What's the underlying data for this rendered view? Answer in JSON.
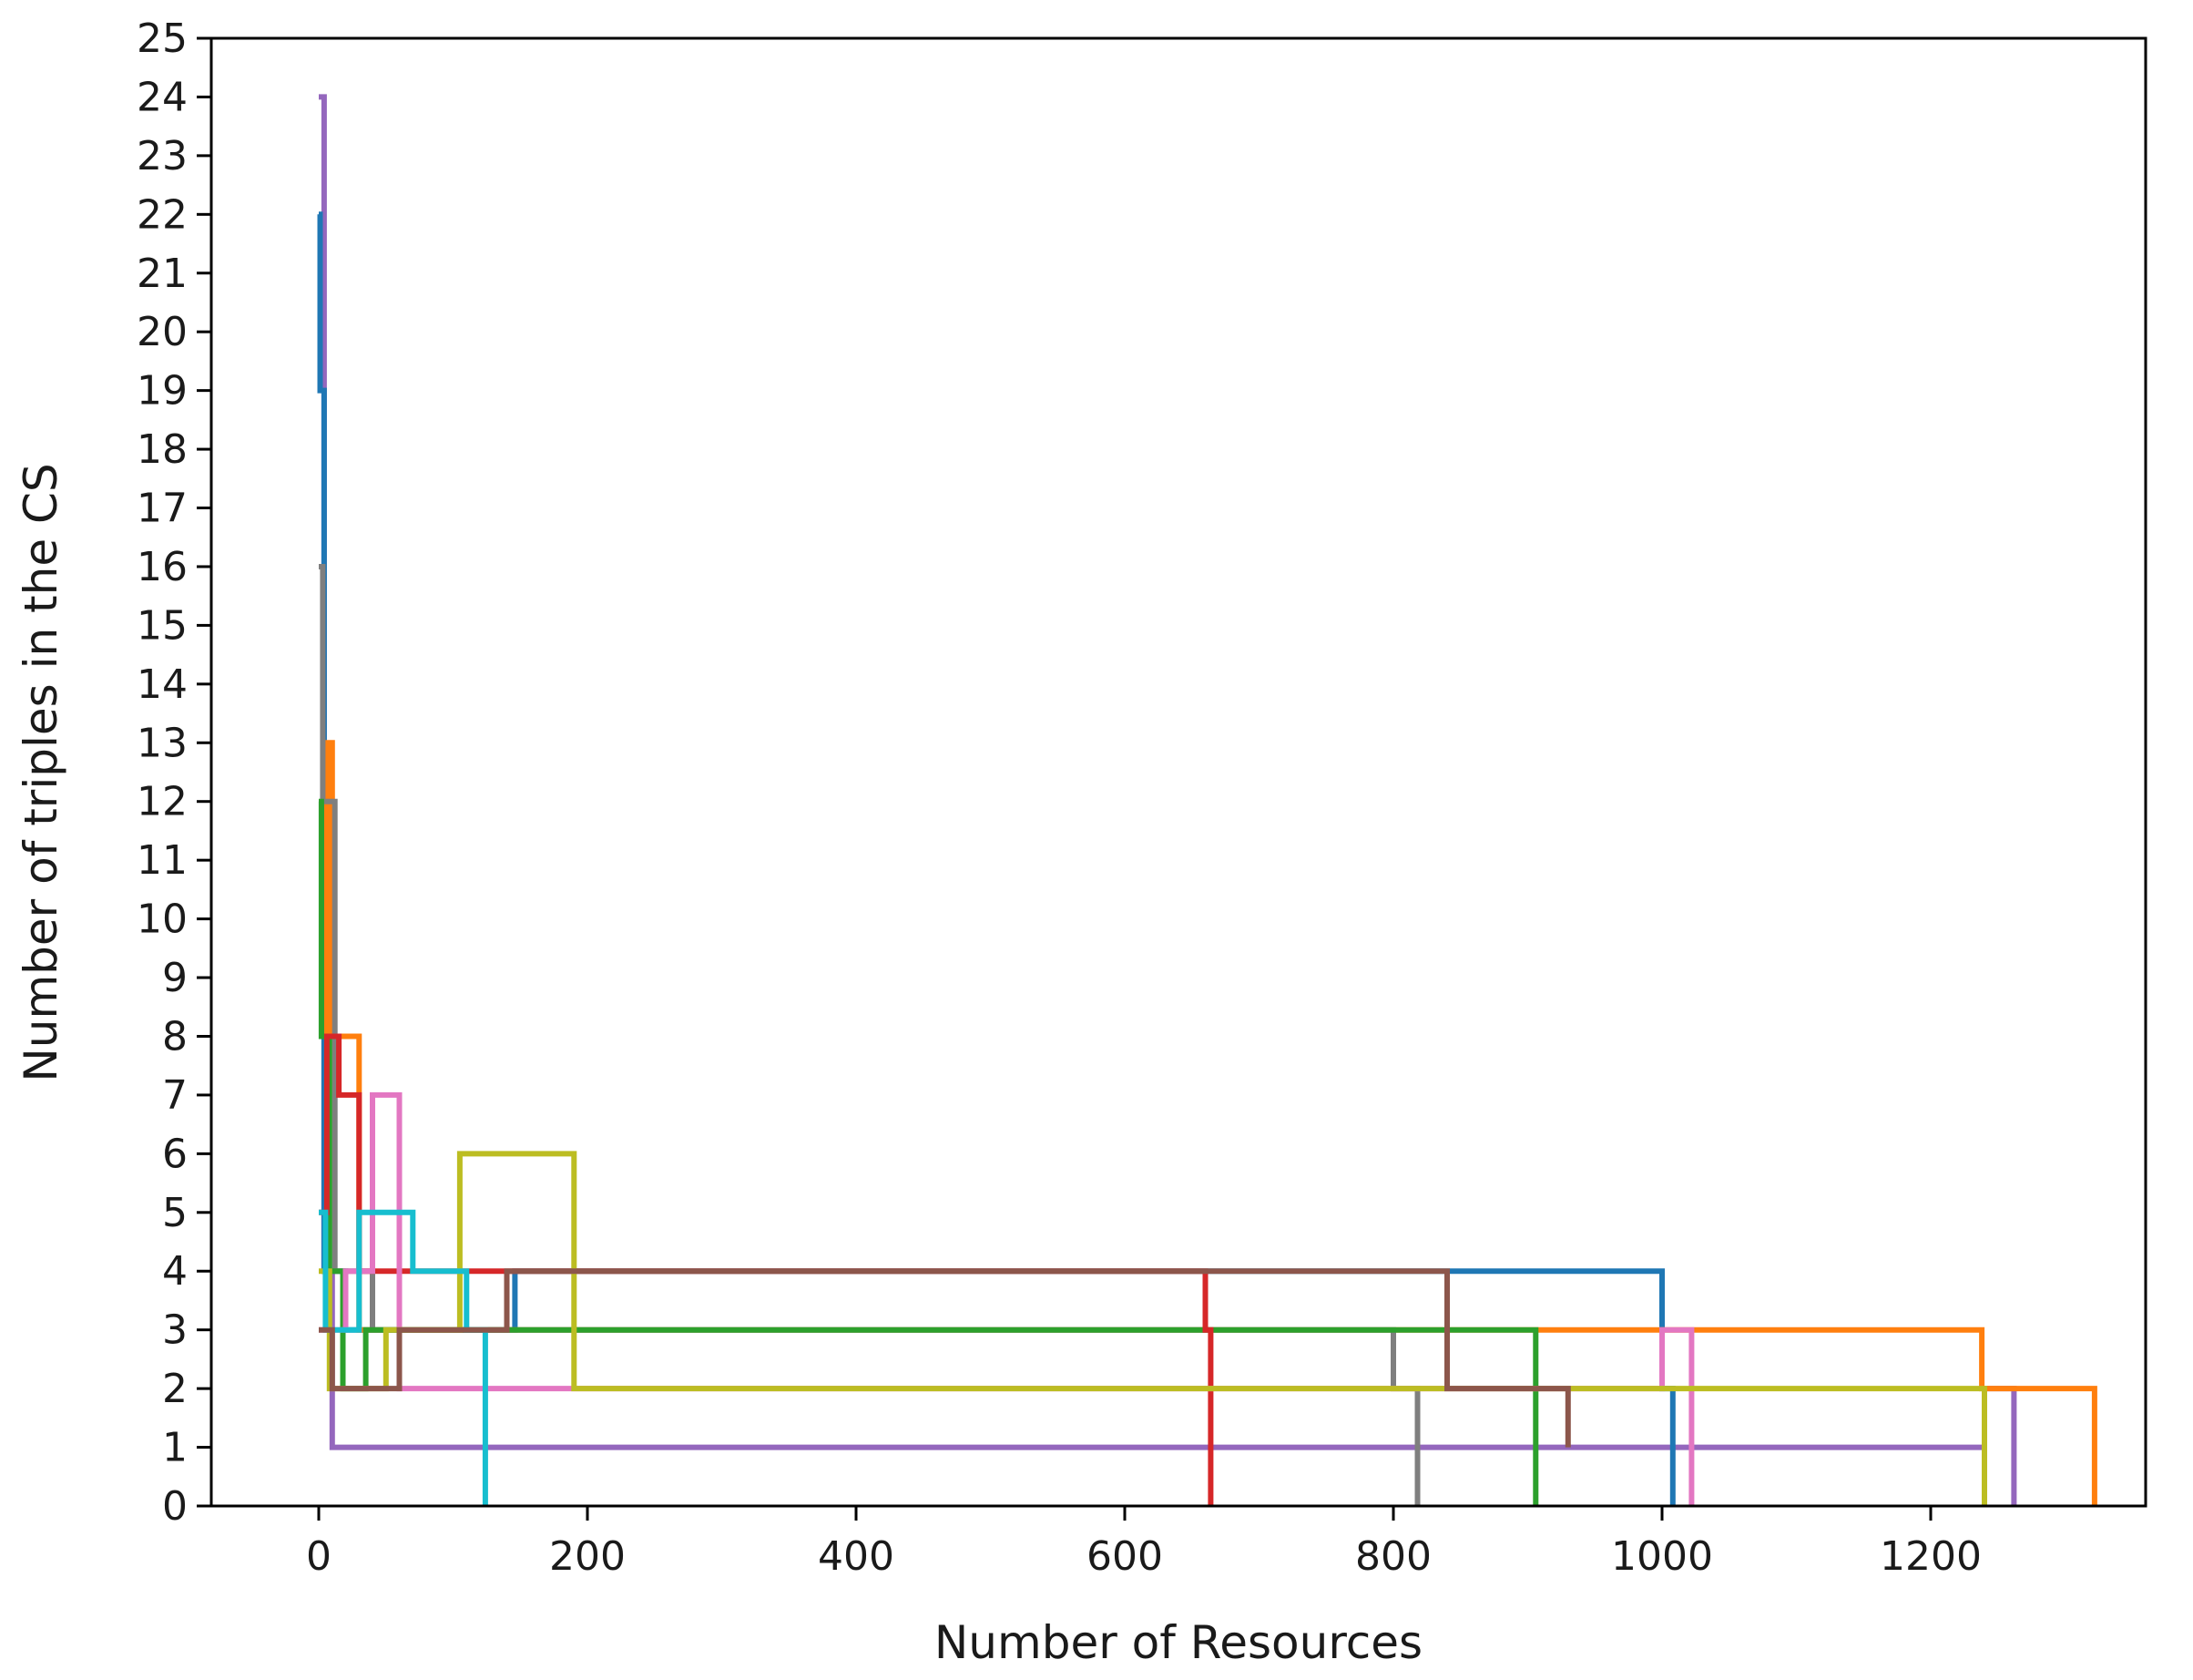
{
  "chart_data": {
    "type": "line",
    "xlabel": "Number of Resources",
    "ylabel": "Number of triples in the CS",
    "xlim": [
      -80,
      1360
    ],
    "ylim": [
      0,
      25
    ],
    "xticks": [
      0,
      200,
      400,
      600,
      800,
      1000,
      1200
    ],
    "yticks": [
      0,
      1,
      2,
      3,
      4,
      5,
      6,
      7,
      8,
      9,
      10,
      11,
      12,
      13,
      14,
      15,
      16,
      17,
      18,
      19,
      20,
      21,
      22,
      23,
      24,
      25
    ],
    "grid": false,
    "legend": "none",
    "palette": [
      "#1f77b4",
      "#ff7f0e",
      "#2ca02c",
      "#d62728",
      "#9467bd",
      "#8c564b",
      "#e377c2",
      "#7f7f7f",
      "#bcbd22",
      "#17becf"
    ],
    "series": [
      {
        "color": "#9467bd",
        "x": [
          0,
          2,
          4,
          10,
          25,
          1240,
          1262
        ],
        "y": [
          24,
          24,
          4,
          1,
          1,
          2,
          0
        ]
      },
      {
        "color": "#1f77b4",
        "x": [
          0,
          1,
          4,
          20,
          146,
          1000,
          1008
        ],
        "y": [
          22,
          19,
          4,
          3,
          4,
          2,
          0
        ]
      },
      {
        "color": "#ff7f0e",
        "x": [
          0,
          6,
          10,
          30,
          1238,
          1320,
          1322
        ],
        "y": [
          8,
          13,
          8,
          3,
          2,
          2,
          0
        ]
      },
      {
        "color": "#7f7f7f",
        "x": [
          0,
          3,
          12,
          40,
          800,
          818
        ],
        "y": [
          16,
          12,
          4,
          3,
          2,
          0
        ]
      },
      {
        "color": "#2ca02c",
        "x": [
          0,
          2,
          8,
          18,
          35,
          906
        ],
        "y": [
          12,
          8,
          4,
          2,
          3,
          0
        ]
      },
      {
        "color": "#d62728",
        "x": [
          0,
          6,
          15,
          30,
          660,
          664
        ],
        "y": [
          5,
          8,
          7,
          4,
          3,
          0
        ]
      },
      {
        "color": "#e377c2",
        "x": [
          0,
          20,
          40,
          60,
          1000,
          1022
        ],
        "y": [
          3,
          4,
          7,
          2,
          3,
          0
        ]
      },
      {
        "color": "#bcbd22",
        "x": [
          0,
          8,
          50,
          105,
          190,
          1240
        ],
        "y": [
          4,
          2,
          3,
          6,
          2,
          0
        ]
      },
      {
        "color": "#17becf",
        "x": [
          0,
          5,
          30,
          70,
          110,
          124
        ],
        "y": [
          5,
          3,
          5,
          4,
          3,
          0
        ]
      },
      {
        "color": "#8c564b",
        "x": [
          0,
          10,
          60,
          140,
          840,
          930
        ],
        "y": [
          3,
          2,
          3,
          4,
          2,
          1
        ]
      }
    ]
  }
}
